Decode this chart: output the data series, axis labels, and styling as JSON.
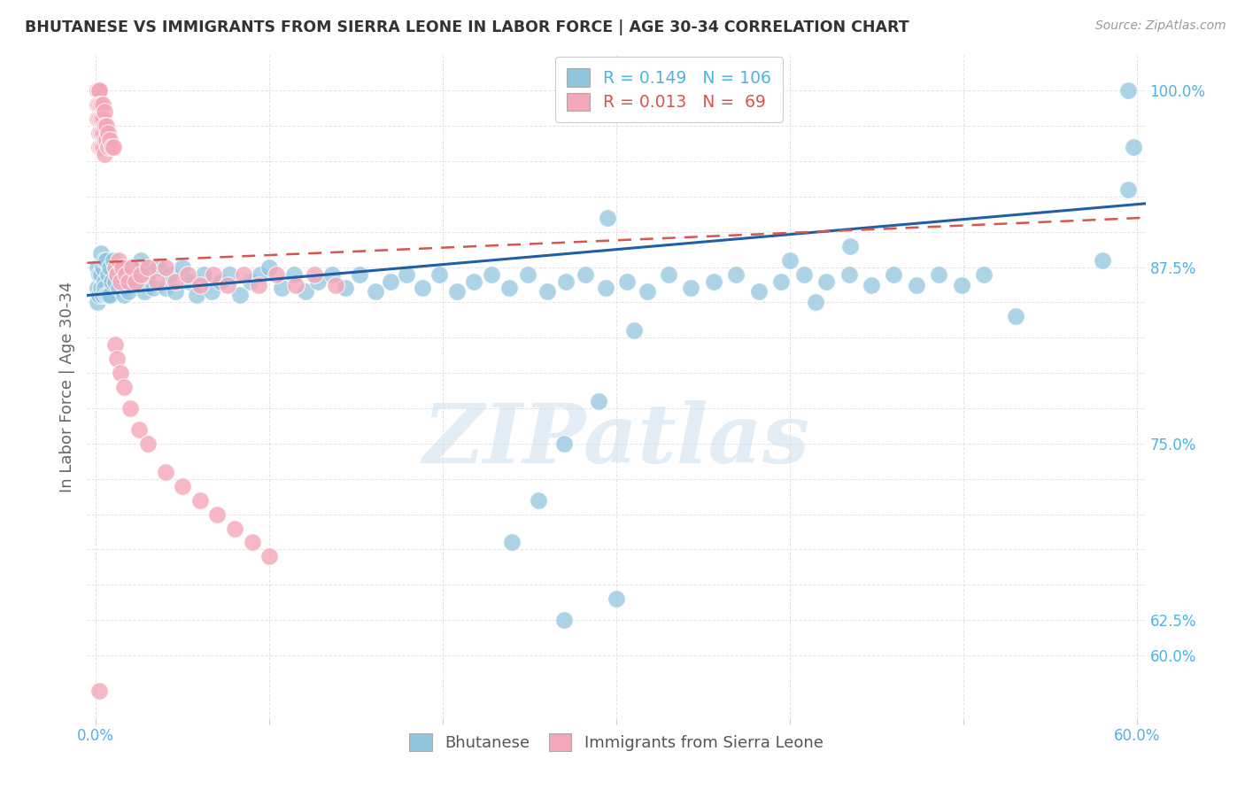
{
  "title": "BHUTANESE VS IMMIGRANTS FROM SIERRA LEONE IN LABOR FORCE | AGE 30-34 CORRELATION CHART",
  "source": "Source: ZipAtlas.com",
  "ylabel": "In Labor Force | Age 30-34",
  "xlim": [
    -0.005,
    0.605
  ],
  "ylim": [
    0.555,
    1.025
  ],
  "grid_y": [
    0.6,
    0.625,
    0.65,
    0.675,
    0.7,
    0.725,
    0.75,
    0.775,
    0.8,
    0.825,
    0.85,
    0.875,
    0.9,
    0.925,
    0.95,
    0.975,
    1.0
  ],
  "grid_x": [
    0.0,
    0.1,
    0.2,
    0.3,
    0.4,
    0.5,
    0.6
  ],
  "blue_color": "#92c5de",
  "pink_color": "#f4a7b9",
  "trend_blue": "#1f5fa6",
  "trend_pink": "#d9534f",
  "trend_blue_y0": 0.855,
  "trend_blue_y1": 0.92,
  "trend_pink_y0": 0.878,
  "trend_pink_y1": 0.91,
  "axis_color": "#4db3e6",
  "grid_color": "#dddddd",
  "title_color": "#333333",
  "ylabel_color": "#666666",
  "watermark": "ZIPatlas",
  "blue_x": [
    0.001,
    0.001,
    0.001,
    0.002,
    0.002,
    0.003,
    0.003,
    0.003,
    0.004,
    0.004,
    0.005,
    0.005,
    0.005,
    0.006,
    0.006,
    0.007,
    0.007,
    0.008,
    0.008,
    0.009,
    0.01,
    0.011,
    0.012,
    0.013,
    0.014,
    0.015,
    0.016,
    0.017,
    0.018,
    0.019,
    0.02,
    0.022,
    0.024,
    0.026,
    0.028,
    0.03,
    0.033,
    0.036,
    0.04,
    0.043,
    0.046,
    0.05,
    0.054,
    0.058,
    0.062,
    0.067,
    0.072,
    0.077,
    0.083,
    0.089,
    0.095,
    0.1,
    0.107,
    0.114,
    0.121,
    0.128,
    0.136,
    0.144,
    0.152,
    0.161,
    0.17,
    0.179,
    0.188,
    0.198,
    0.208,
    0.218,
    0.228,
    0.238,
    0.249,
    0.26,
    0.271,
    0.282,
    0.294,
    0.306,
    0.318,
    0.33,
    0.343,
    0.356,
    0.369,
    0.382,
    0.395,
    0.408,
    0.421,
    0.434,
    0.447,
    0.46,
    0.473,
    0.486,
    0.499,
    0.512,
    0.27,
    0.29,
    0.31,
    0.295,
    0.4,
    0.415,
    0.435,
    0.53,
    0.58,
    0.595,
    0.595,
    0.598,
    0.27,
    0.3,
    0.24,
    0.255
  ],
  "blue_y": [
    0.875,
    0.86,
    0.85,
    0.87,
    0.855,
    0.885,
    0.87,
    0.86,
    0.875,
    0.855,
    0.88,
    0.865,
    0.86,
    0.88,
    0.855,
    0.87,
    0.855,
    0.875,
    0.855,
    0.865,
    0.88,
    0.865,
    0.875,
    0.86,
    0.87,
    0.875,
    0.855,
    0.86,
    0.87,
    0.858,
    0.875,
    0.87,
    0.865,
    0.88,
    0.858,
    0.87,
    0.86,
    0.875,
    0.86,
    0.87,
    0.858,
    0.875,
    0.865,
    0.855,
    0.87,
    0.858,
    0.865,
    0.87,
    0.855,
    0.865,
    0.87,
    0.875,
    0.86,
    0.87,
    0.858,
    0.865,
    0.87,
    0.86,
    0.87,
    0.858,
    0.865,
    0.87,
    0.86,
    0.87,
    0.858,
    0.865,
    0.87,
    0.86,
    0.87,
    0.858,
    0.865,
    0.87,
    0.86,
    0.865,
    0.858,
    0.87,
    0.86,
    0.865,
    0.87,
    0.858,
    0.865,
    0.87,
    0.865,
    0.87,
    0.862,
    0.87,
    0.862,
    0.87,
    0.862,
    0.87,
    0.75,
    0.78,
    0.83,
    0.91,
    0.88,
    0.85,
    0.89,
    0.84,
    0.88,
    1.0,
    0.93,
    0.96,
    0.625,
    0.64,
    0.68,
    0.71
  ],
  "pink_x": [
    0.001,
    0.001,
    0.001,
    0.001,
    0.001,
    0.002,
    0.002,
    0.002,
    0.002,
    0.002,
    0.002,
    0.003,
    0.003,
    0.003,
    0.003,
    0.004,
    0.004,
    0.004,
    0.004,
    0.005,
    0.005,
    0.005,
    0.005,
    0.006,
    0.006,
    0.007,
    0.007,
    0.008,
    0.009,
    0.01,
    0.011,
    0.012,
    0.013,
    0.014,
    0.015,
    0.017,
    0.019,
    0.021,
    0.023,
    0.026,
    0.03,
    0.035,
    0.04,
    0.046,
    0.053,
    0.06,
    0.068,
    0.076,
    0.085,
    0.094,
    0.104,
    0.115,
    0.126,
    0.138,
    0.011,
    0.012,
    0.014,
    0.016,
    0.02,
    0.025,
    0.03,
    0.04,
    0.05,
    0.06,
    0.07,
    0.08,
    0.09,
    0.1,
    0.002
  ],
  "pink_y": [
    1.0,
    1.0,
    1.0,
    0.99,
    0.98,
    1.0,
    1.0,
    0.99,
    0.98,
    0.97,
    0.96,
    0.99,
    0.98,
    0.97,
    0.96,
    0.99,
    0.98,
    0.97,
    0.96,
    0.985,
    0.975,
    0.965,
    0.955,
    0.975,
    0.965,
    0.97,
    0.96,
    0.965,
    0.96,
    0.96,
    0.875,
    0.87,
    0.88,
    0.865,
    0.875,
    0.87,
    0.865,
    0.875,
    0.865,
    0.87,
    0.875,
    0.865,
    0.875,
    0.865,
    0.87,
    0.862,
    0.87,
    0.862,
    0.87,
    0.862,
    0.87,
    0.862,
    0.87,
    0.862,
    0.82,
    0.81,
    0.8,
    0.79,
    0.775,
    0.76,
    0.75,
    0.73,
    0.72,
    0.71,
    0.7,
    0.69,
    0.68,
    0.67,
    0.575
  ]
}
